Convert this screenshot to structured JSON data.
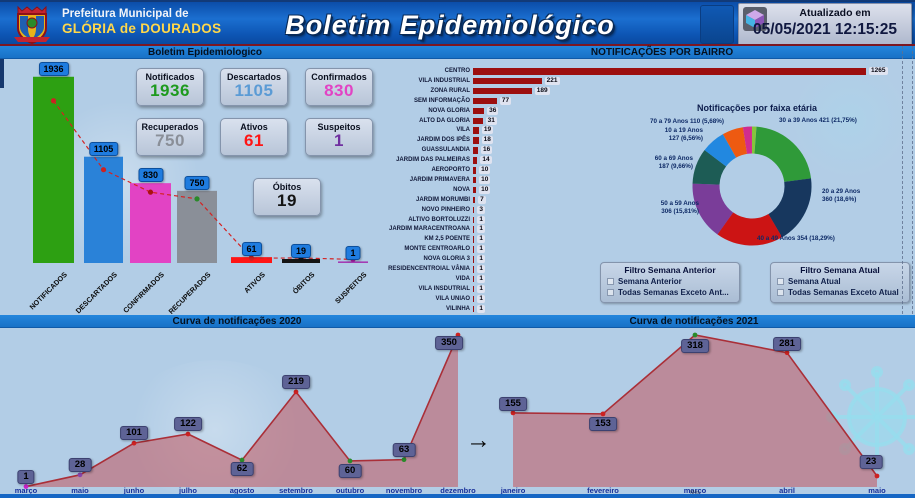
{
  "header": {
    "org_line1": "Prefeitura Municipal de",
    "org_line2": "GLÓRIA de DOURADOS",
    "title": "Boletim Epidemiológico",
    "updated_label": "Atualizado em",
    "updated_value": "05/05/2021 12:15:25"
  },
  "section_titles": {
    "summary": "Boletim Epidemiologico",
    "bairro": "NOTIFICAÇÕES POR BAIRRO",
    "faixa": "Notificações por faixa etária",
    "curve2020": "Curva de notificações 2020",
    "curve2021": "Curva de notificações 2021"
  },
  "cards": [
    {
      "label": "Notificados",
      "value": "1936",
      "color": "#1e9a1e"
    },
    {
      "label": "Descartados",
      "value": "1105",
      "color": "#5b9bd5"
    },
    {
      "label": "Confirmados",
      "value": "830",
      "color": "#e243c4"
    },
    {
      "label": "Recuperados",
      "value": "750",
      "color": "#8a8f98"
    },
    {
      "label": "Ativos",
      "value": "61",
      "color": "#ff1515"
    },
    {
      "label": "Suspeitos",
      "value": "1",
      "color": "#7030a0"
    },
    {
      "label": "Óbitos",
      "value": "19",
      "color": "#141414"
    }
  ],
  "filters": {
    "previous": {
      "title": "Filtro Semana Anterior",
      "options": [
        "Semana Anterior",
        "Todas Semanas Exceto Ant..."
      ]
    },
    "current": {
      "title": "Filtro Semana Atual",
      "options": [
        "Semana Atual",
        "Todas Semanas Exceto Atual"
      ]
    }
  },
  "misc": {
    "arrow": "→",
    "mes_label": "Mês"
  },
  "chart_data": [
    {
      "id": "resumo",
      "type": "bar",
      "title": "Boletim Epidemiologico",
      "categories": [
        "NOTIFICADOS",
        "DESCARTADOS",
        "CONFIRMADOS",
        "RECUPERADOS",
        "ATIVOS",
        "ÓBITOS",
        "SUSPEITOS"
      ],
      "values": [
        1936,
        1105,
        830,
        750,
        61,
        19,
        1
      ],
      "colors": [
        "#2da012",
        "#2a82d8",
        "#e243c4",
        "#8a8f98",
        "#ff1515",
        "#141414",
        "#a43cb4"
      ],
      "trendline_color": "#d42222",
      "point_colors": [
        "#cc2222",
        "#cc2222",
        "#aa1111",
        "#2a8a2a",
        "#cc2222",
        "#111111",
        "#aa22aa"
      ]
    },
    {
      "id": "bairros",
      "type": "bar",
      "orientation": "horizontal",
      "title": "NOTIFICAÇÕES POR BAIRRO",
      "bar_color": "#9c0f0f",
      "categories": [
        "CENTRO",
        "VILA INDUSTRIAL",
        "ZONA RURAL",
        "SEM INFORMAÇÃO",
        "NOVA GLORIA",
        "ALTO DA GLORIA",
        "VILA",
        "JARDIM DOS IPÊS",
        "GUASSULANDIA",
        "JARDIM DAS PALMEIRAS",
        "AEROPORTO",
        "JARDIM PRIMAVERA",
        "NOVA",
        "JARDIM MORUMBI",
        "NOVO PINHEIRO",
        "ALTIVO BORTOLUZZI",
        "JARDIM MARACENTROANA",
        "KM 2,5 POENTE",
        "MONTE CENTROARLO",
        "NOVA GLORIA 3",
        "RESIDENCENTROIAL VÂNIA",
        "VIDA",
        "VILA INSDUTRIAL",
        "VILA UNIAO",
        "VILINHA"
      ],
      "values": [
        1265,
        221,
        189,
        77,
        36,
        31,
        19,
        18,
        16,
        14,
        10,
        10,
        10,
        7,
        3,
        1,
        1,
        1,
        1,
        1,
        1,
        1,
        1,
        1,
        1
      ]
    },
    {
      "id": "faixa_etaria",
      "type": "pie",
      "title": "Notificações por faixa etária",
      "slices": [
        {
          "label": "",
          "value": 1.2,
          "color": "#86c43c"
        },
        {
          "label": "30 a 39 Anos 421 (21,75%)",
          "value": 21.75,
          "color": "#2f9a39"
        },
        {
          "label": "20 a 29 Anos 360 (18,6%)",
          "value": 18.6,
          "color": "#17375e"
        },
        {
          "label": "40 a 49 Anos 354 (18,29%)",
          "value": 18.29,
          "color": "#cc1414"
        },
        {
          "label": "50 a 59 Anos 306 (15,81%)",
          "value": 15.81,
          "color": "#7a3d99"
        },
        {
          "label": "60 a 69 Anos 187 (9,66%)",
          "value": 9.66,
          "color": "#1d5c55"
        },
        {
          "label": "10 a 19 Anos 127 (6,56%)",
          "value": 6.56,
          "color": "#2288e0"
        },
        {
          "label": "70 a 79 Anos 110 (5,68%)",
          "value": 5.68,
          "color": "#ee5a11"
        },
        {
          "label": "",
          "value": 2.45,
          "color": "#d12c8e"
        }
      ]
    },
    {
      "id": "curva_2020",
      "type": "area",
      "title": "Curva de notificações 2020",
      "categories": [
        "março",
        "maio",
        "junho",
        "julho",
        "agosto",
        "setembro",
        "outubro",
        "novembro",
        "dezembro"
      ],
      "values": [
        1,
        28,
        101,
        122,
        62,
        219,
        60,
        63,
        350
      ],
      "point_colors": [
        "#cc22cc",
        "#8844aa",
        "#cc2222",
        "#cc2222",
        "#2a8a2a",
        "#cc2222",
        "#2a8a2a",
        "#2a8a2a",
        "#cc2222"
      ],
      "line_color": "#aa2f38"
    },
    {
      "id": "curva_2021",
      "type": "area",
      "title": "Curva de notificações 2021",
      "xlabel": "Mês",
      "categories": [
        "janeiro",
        "fevereiro",
        "março",
        "abril",
        "maio"
      ],
      "values": [
        155,
        153,
        318,
        281,
        23
      ],
      "point_colors": [
        "#cc2222",
        "#cc2222",
        "#2a8a2a",
        "#cc2222",
        "#cc2222"
      ],
      "line_color": "#aa2f38"
    }
  ]
}
